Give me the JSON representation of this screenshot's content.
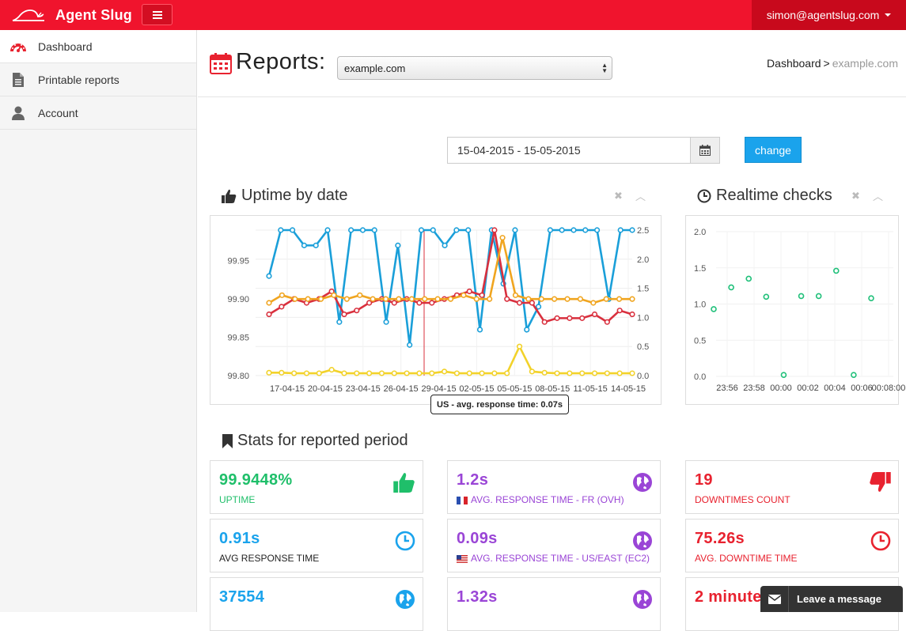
{
  "brand": {
    "name": "Agent Slug"
  },
  "user": {
    "email": "simon@agentslug.com"
  },
  "sidebar": {
    "items": [
      {
        "label": "Dashboard",
        "icon": "dashboard-gauge-icon"
      },
      {
        "label": "Printable reports",
        "icon": "file-icon"
      },
      {
        "label": "Account",
        "icon": "user-icon"
      }
    ]
  },
  "header": {
    "title": "Reports:",
    "selected_site": "example.com",
    "breadcrumb": {
      "root": "Dashboard",
      "separator": ">",
      "current": "example.com"
    }
  },
  "date_range": {
    "value": "15-04-2015 - 15-05-2015",
    "button": "change"
  },
  "uptime_panel": {
    "title": "Uptime by date"
  },
  "realtime_panel": {
    "title": "Realtime checks"
  },
  "stats_panel": {
    "title": "Stats for reported period"
  },
  "tooltip": {
    "text": "US - avg. response time: 0.07s"
  },
  "chart_data": [
    {
      "type": "line",
      "title": "Uptime by date",
      "x_tick_labels": [
        "17-04-15",
        "20-04-15",
        "23-04-15",
        "26-04-15",
        "29-04-15",
        "02-05-15",
        "05-05-15",
        "08-05-15",
        "11-05-15",
        "14-05-15"
      ],
      "left_axis": {
        "ticks": [
          "99.80",
          "99.85",
          "99.90",
          "99.95"
        ],
        "range": [
          99.8,
          99.99
        ]
      },
      "right_axis": {
        "ticks": [
          "0.0",
          "0.5",
          "1.0",
          "1.5",
          "2.0",
          "2.5"
        ],
        "range": [
          0,
          2.5
        ]
      },
      "series": [
        {
          "axis": "left",
          "color": "#1a9fd9",
          "values": [
            99.93,
            99.99,
            99.99,
            99.97,
            99.97,
            99.99,
            99.87,
            99.99,
            99.99,
            99.99,
            99.87,
            99.97,
            99.84,
            99.99,
            99.99,
            99.97,
            99.99,
            99.99,
            99.86,
            99.99,
            99.92,
            99.99,
            99.86,
            99.89,
            99.99,
            99.99,
            99.99,
            99.99,
            99.99,
            99.9,
            99.99,
            99.99
          ]
        },
        {
          "axis": "left",
          "color": "#d9303e",
          "values": [
            99.88,
            99.89,
            99.9,
            99.895,
            99.9,
            99.91,
            99.88,
            99.885,
            99.895,
            99.9,
            99.895,
            99.9,
            99.895,
            99.895,
            99.9,
            99.905,
            99.91,
            99.905,
            99.99,
            99.9,
            99.895,
            99.895,
            99.87,
            99.875,
            99.875,
            99.875,
            99.88,
            99.87,
            99.885,
            99.88
          ]
        },
        {
          "axis": "left",
          "color": "#f0a520",
          "values": [
            99.895,
            99.905,
            99.9,
            99.9,
            99.9,
            99.905,
            99.9,
            99.905,
            99.9,
            99.9,
            99.9,
            99.9,
            99.9,
            99.9,
            99.9,
            99.905,
            99.9,
            99.9,
            99.98,
            99.905,
            99.9,
            99.9,
            99.9,
            99.9,
            99.9,
            99.895,
            99.9,
            99.9,
            99.9
          ]
        },
        {
          "axis": "right",
          "name": "US - avg. response time",
          "color": "#f2d22a",
          "values": [
            0.05,
            0.05,
            0.04,
            0.04,
            0.04,
            0.1,
            0.04,
            0.04,
            0.04,
            0.04,
            0.04,
            0.04,
            0.04,
            0.04,
            0.07,
            0.04,
            0.04,
            0.04,
            0.04,
            0.04,
            0.5,
            0.07,
            0.05,
            0.04,
            0.04,
            0.04,
            0.04,
            0.04,
            0.04,
            0.04
          ]
        }
      ]
    },
    {
      "type": "scatter",
      "title": "Realtime checks",
      "y_ticks": [
        "0.0",
        "0.5",
        "1.0",
        "1.5",
        "2.0"
      ],
      "ylim": [
        0,
        2.0
      ],
      "x_tick_labels": [
        "23:56",
        "23:58",
        "00:00",
        "00:02",
        "00:04",
        "00:06",
        "00:08:00"
      ],
      "color": "#20c07a",
      "values": [
        0.93,
        1.23,
        1.35,
        1.1,
        0.02,
        1.11,
        1.11,
        1.46,
        0.02,
        1.08
      ]
    }
  ],
  "stats": [
    {
      "value": "99.9448%",
      "label": "UPTIME",
      "color": "#1fbf6a",
      "icon": "thumbs-up-icon"
    },
    {
      "value": "1.2s",
      "label": "AVG. RESPONSE TIME - FR (OVH)",
      "color": "#9a45d6",
      "icon": "globe-icon",
      "flag": "fr-flag-icon"
    },
    {
      "value": "19",
      "label": "DOWNTIMES COUNT",
      "color": "#e8222f",
      "icon": "thumbs-down-icon"
    },
    {
      "value": "0.91s",
      "label": "AVG RESPONSE TIME",
      "color": "#1aa3ec",
      "icon": "clock-icon"
    },
    {
      "value": "0.09s",
      "label": "AVG. RESPONSE TIME - US/EAST (EC2)",
      "color": "#9a45d6",
      "icon": "globe-icon",
      "flag": "us-flag-icon"
    },
    {
      "value": "75.26s",
      "label": "AVG. DOWNTIME TIME",
      "color": "#e8222f",
      "icon": "clock-icon"
    },
    {
      "value": "37554",
      "label": "",
      "color": "#1aa3ec",
      "icon": "globe-icon"
    },
    {
      "value": "1.32s",
      "label": "",
      "color": "#9a45d6",
      "icon": "globe-icon"
    },
    {
      "value": "2 minute",
      "label": "",
      "color": "#e8222f",
      "icon": ""
    }
  ],
  "chat": {
    "label": "Leave a message"
  }
}
